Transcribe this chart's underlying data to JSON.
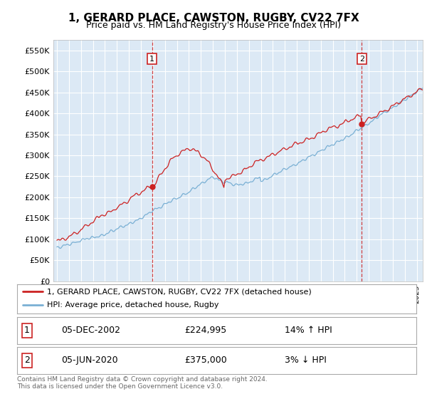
{
  "title": "1, GERARD PLACE, CAWSTON, RUGBY, CV22 7FX",
  "subtitle": "Price paid vs. HM Land Registry's House Price Index (HPI)",
  "ylabel_ticks": [
    "£0",
    "£50K",
    "£100K",
    "£150K",
    "£200K",
    "£250K",
    "£300K",
    "£350K",
    "£400K",
    "£450K",
    "£500K",
    "£550K"
  ],
  "ylim": [
    0,
    575000
  ],
  "xlim_start": 1994.7,
  "xlim_end": 2025.5,
  "plot_bg": "#dce9f5",
  "grid_color": "#ffffff",
  "red_line_color": "#cc2222",
  "blue_line_color": "#7ab0d4",
  "sale1_x": 2002.92,
  "sale1_y": 224995,
  "sale2_x": 2020.42,
  "sale2_y": 375000,
  "legend_line1": "1, GERARD PLACE, CAWSTON, RUGBY, CV22 7FX (detached house)",
  "legend_line2": "HPI: Average price, detached house, Rugby",
  "table_row1_num": "1",
  "table_row1_date": "05-DEC-2002",
  "table_row1_price": "£224,995",
  "table_row1_hpi": "14% ↑ HPI",
  "table_row2_num": "2",
  "table_row2_date": "05-JUN-2020",
  "table_row2_price": "£375,000",
  "table_row2_hpi": "3% ↓ HPI",
  "footer": "Contains HM Land Registry data © Crown copyright and database right 2024.\nThis data is licensed under the Open Government Licence v3.0."
}
